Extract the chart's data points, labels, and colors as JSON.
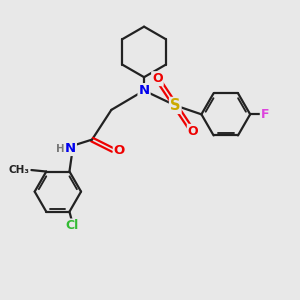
{
  "bg_color": "#e8e8e8",
  "bond_color": "#222222",
  "bond_width": 1.6,
  "atom_colors": {
    "N": "#0000ee",
    "S": "#ccaa00",
    "O": "#ee0000",
    "F": "#dd44dd",
    "Cl": "#33bb33",
    "H": "#777777",
    "C": "#222222"
  },
  "font_size_atom": 8.5,
  "font_size_small": 7.5
}
